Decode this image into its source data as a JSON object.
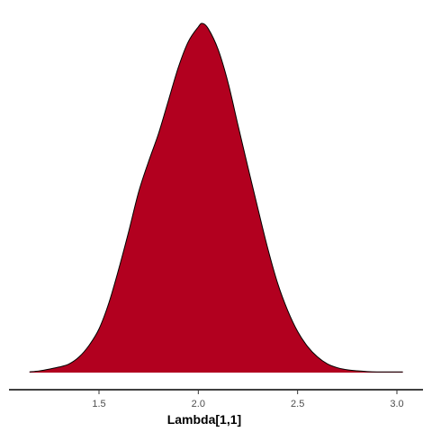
{
  "chart_data": {
    "type": "area",
    "title": "",
    "xlabel": "Lambda[1,1]",
    "ylabel": "",
    "xlim": [
      1.1,
      3.1
    ],
    "ylim": [
      0,
      1.0
    ],
    "x_ticks": [
      1.5,
      2.0,
      2.5,
      3.0
    ],
    "x_tick_labels": [
      "1.5",
      "2.0",
      "2.5",
      "3.0"
    ],
    "grid": false,
    "legend": "none",
    "colors": {
      "fill": "#b2001f",
      "outline": "#000000",
      "axis": "#000000"
    },
    "series": [
      {
        "x": [
          1.15,
          1.2,
          1.25,
          1.3,
          1.35,
          1.4,
          1.45,
          1.5,
          1.55,
          1.6,
          1.65,
          1.7,
          1.75,
          1.8,
          1.85,
          1.9,
          1.95,
          2.0,
          2.02,
          2.05,
          2.1,
          2.15,
          2.2,
          2.25,
          2.3,
          2.35,
          2.4,
          2.45,
          2.5,
          2.55,
          2.6,
          2.65,
          2.7,
          2.75,
          2.8,
          2.85,
          2.9,
          2.95,
          3.0,
          3.03
        ],
        "y": [
          0.002,
          0.005,
          0.01,
          0.016,
          0.025,
          0.045,
          0.078,
          0.125,
          0.2,
          0.298,
          0.405,
          0.518,
          0.605,
          0.685,
          0.78,
          0.875,
          0.948,
          0.99,
          1.0,
          0.985,
          0.925,
          0.83,
          0.708,
          0.588,
          0.47,
          0.355,
          0.255,
          0.178,
          0.118,
          0.075,
          0.045,
          0.025,
          0.014,
          0.008,
          0.005,
          0.003,
          0.002,
          0.002,
          0.002,
          0.002
        ]
      }
    ]
  }
}
